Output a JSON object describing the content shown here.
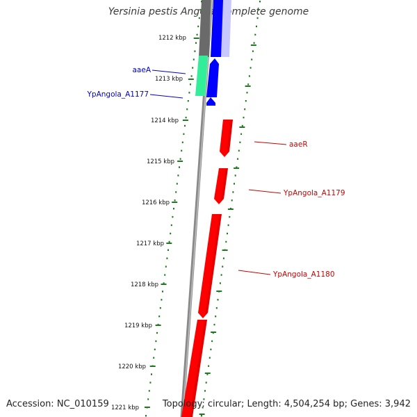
{
  "title": "Yersinia pestis Angola, complete genome",
  "footer": {
    "accession": "Accession: NC_010159",
    "summary": "Topology: circular; Length: 4,504,254 bp; Genes: 3,942"
  },
  "ruler": {
    "ticks": [
      "1212 kbp",
      "1213 kbp",
      "1214 kbp",
      "1215 kbp",
      "1216 kbp",
      "1217 kbp",
      "1218 kbp",
      "1219 kbp",
      "1220 kbp",
      "1221 kbp"
    ]
  },
  "genes": [
    {
      "label": "aaeA",
      "strand": "forward",
      "color": "#0000ee"
    },
    {
      "label": "YpAngola_A1177",
      "strand": "forward",
      "color": "#0000ee"
    },
    {
      "label": "aaeR",
      "strand": "reverse",
      "color": "#cc0000"
    },
    {
      "label": "YpAngola_A1179",
      "strand": "reverse",
      "color": "#cc0000"
    },
    {
      "label": "YpAngola_A1180",
      "strand": "reverse",
      "color": "#cc0000"
    }
  ],
  "colors": {
    "forward_fill": "#0000ff",
    "reverse_fill": "#ff0000",
    "cog_green": "#33ee99",
    "cog_gray": "#6a6a6a",
    "backbone": "#8c8c8c",
    "tick_green": "#1f7a1f"
  }
}
